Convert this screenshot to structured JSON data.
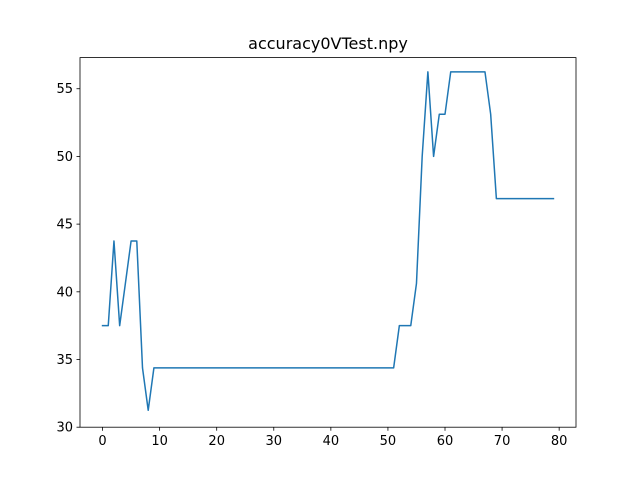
{
  "chart_data": {
    "type": "line",
    "title": "accuracy0VTest.npy",
    "xlabel": "",
    "ylabel": "",
    "xlim": [
      -3.95,
      82.95
    ],
    "ylim": [
      30,
      57.3
    ],
    "xticks": [
      0,
      10,
      20,
      30,
      40,
      50,
      60,
      70,
      80
    ],
    "yticks": [
      30,
      35,
      40,
      45,
      50,
      55
    ],
    "grid": false,
    "series": [
      {
        "color": "#1f77b4",
        "x": [
          0,
          1,
          2,
          3,
          4,
          5,
          6,
          7,
          8,
          9,
          10,
          11,
          12,
          13,
          14,
          15,
          16,
          17,
          18,
          19,
          20,
          21,
          22,
          23,
          24,
          25,
          26,
          27,
          28,
          29,
          30,
          31,
          32,
          33,
          34,
          35,
          36,
          37,
          38,
          39,
          40,
          41,
          42,
          43,
          44,
          45,
          46,
          47,
          48,
          49,
          50,
          51,
          52,
          53,
          54,
          55,
          56,
          57,
          58,
          59,
          60,
          61,
          62,
          63,
          64,
          65,
          66,
          67,
          68,
          69,
          70,
          71,
          72,
          73,
          74,
          75,
          76,
          77,
          78,
          79
        ],
        "y": [
          37.5,
          37.5,
          43.75,
          37.5,
          40.62,
          43.75,
          43.75,
          34.38,
          31.25,
          34.38,
          34.38,
          34.38,
          34.38,
          34.38,
          34.38,
          34.38,
          34.38,
          34.38,
          34.38,
          34.38,
          34.38,
          34.38,
          34.38,
          34.38,
          34.38,
          34.38,
          34.38,
          34.38,
          34.38,
          34.38,
          34.38,
          34.38,
          34.38,
          34.38,
          34.38,
          34.38,
          34.38,
          34.38,
          34.38,
          34.38,
          34.38,
          34.38,
          34.38,
          34.38,
          34.38,
          34.38,
          34.38,
          34.38,
          34.38,
          34.38,
          34.38,
          34.38,
          37.5,
          37.5,
          37.5,
          40.62,
          50.0,
          56.25,
          50.0,
          53.12,
          53.12,
          56.25,
          56.25,
          56.25,
          56.25,
          56.25,
          56.25,
          56.25,
          53.12,
          46.88,
          46.88,
          46.88,
          46.88,
          46.88,
          46.88,
          46.88,
          46.88,
          46.88,
          46.88,
          46.88
        ]
      }
    ]
  }
}
